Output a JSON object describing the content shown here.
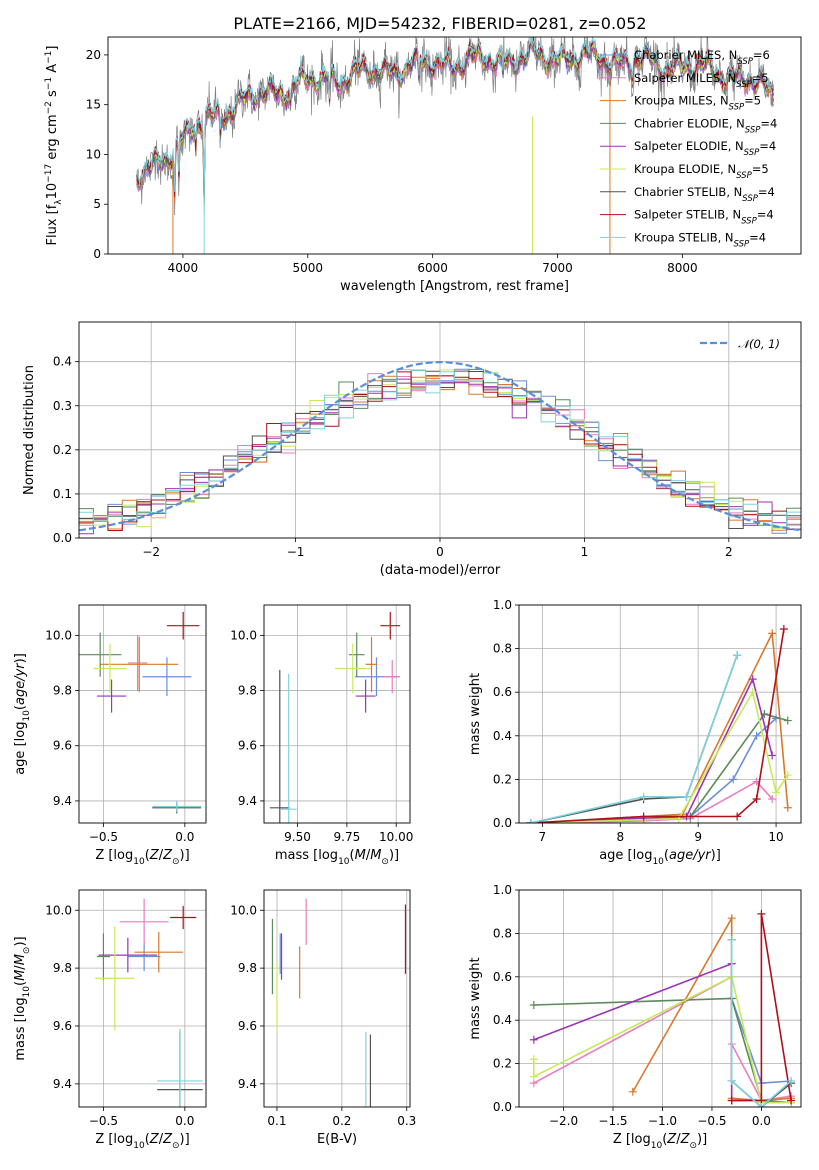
{
  "title": "PLATE=2166, MJD=54232, FIBERID=0281, z=0.052",
  "colors": {
    "chabrier_miles": "#6a8fd8",
    "salpeter_miles": "#e87dbf",
    "kroupa_miles": "#d9782c",
    "chabrier_elodie": "#5b8a5b",
    "salpeter_elodie": "#9a35b5",
    "kroupa_elodie": "#c8ea5a",
    "chabrier_stelib": "#505050",
    "salpeter_stelib": "#b00f1b",
    "kroupa_stelib": "#7fd3e0",
    "normal": "#5b8ed8",
    "spectrum_data": "#808080"
  },
  "legend_models": [
    {
      "label": "Chabrier MILES, N",
      "sub": "SSP",
      "suffix": "=6",
      "color": "#6a8fd8"
    },
    {
      "label": "Salpeter MILES, N",
      "sub": "SSP",
      "suffix": "=5",
      "color": "#e87dbf"
    },
    {
      "label": "Kroupa MILES, N",
      "sub": "SSP",
      "suffix": "=5",
      "color": "#d9782c"
    },
    {
      "label": "Chabrier ELODIE, N",
      "sub": "SSP",
      "suffix": "=4",
      "color": "#5b8a5b"
    },
    {
      "label": "Salpeter ELODIE, N",
      "sub": "SSP",
      "suffix": "=4",
      "color": "#9a35b5"
    },
    {
      "label": "Kroupa ELODIE, N",
      "sub": "SSP",
      "suffix": "=5",
      "color": "#c8ea5a"
    },
    {
      "label": "Chabrier STELIB, N",
      "sub": "SSP",
      "suffix": "=4",
      "color": "#505050"
    },
    {
      "label": "Salpeter STELIB, N",
      "sub": "SSP",
      "suffix": "=4",
      "color": "#b00f1b"
    },
    {
      "label": "Kroupa STELIB, N",
      "sub": "SSP",
      "suffix": "=4",
      "color": "#7fd3e0"
    }
  ],
  "chart_data": [
    {
      "id": "spectrum",
      "type": "line",
      "xlabel": "wavelength [Angstrom, rest frame]",
      "ylabel": "Flux [f_λ 10^-17 erg cm^-2 s^-1 A^-1]",
      "xlim": [
        3400,
        8950
      ],
      "ylim": [
        0,
        21.8
      ],
      "xticks": [
        4000,
        5000,
        6000,
        7000,
        8000
      ],
      "yticks": [
        0,
        5,
        10,
        15,
        20
      ],
      "x_range": [
        3630,
        8730
      ],
      "continuum": {
        "x": [
          3630,
          3800,
          3950,
          4100,
          4300,
          4600,
          4900,
          5200,
          5500,
          5800,
          6100,
          6400,
          6700,
          7000,
          7300,
          7600,
          7900,
          8200,
          8500,
          8730
        ],
        "y": [
          7.5,
          9.0,
          11.0,
          12.5,
          14.3,
          15.8,
          17.0,
          17.7,
          18.2,
          18.8,
          19.2,
          19.4,
          19.6,
          19.8,
          19.6,
          19.4,
          19.0,
          18.5,
          17.6,
          16.0
        ]
      },
      "absorption_lines": [
        {
          "x": 3934,
          "depth": 5.0
        },
        {
          "x": 3968,
          "depth": 4.0
        },
        {
          "x": 4102,
          "depth": 2.0
        },
        {
          "x": 4170,
          "depth": 8.5
        },
        {
          "x": 4300,
          "depth": 2.5
        },
        {
          "x": 4861,
          "depth": 1.8
        },
        {
          "x": 5175,
          "depth": 2.8
        },
        {
          "x": 5890,
          "depth": 2.4
        },
        {
          "x": 6563,
          "depth": 1.5
        },
        {
          "x": 7600,
          "depth": 1.8
        }
      ],
      "series_note": "data spectrum plus 9 SSP model fits"
    },
    {
      "id": "residuals",
      "type": "step",
      "xlabel": "(data-model)/error",
      "ylabel": "Normed distribution",
      "xlim": [
        -2.5,
        2.5
      ],
      "ylim": [
        0,
        0.49
      ],
      "xticks": [
        -2,
        -1,
        0,
        1,
        2
      ],
      "yticks": [
        0.0,
        0.1,
        0.2,
        0.3,
        0.4
      ],
      "bin_width": 0.1,
      "legend": "𝒩(0, 1)"
    },
    {
      "id": "age_vs_Z",
      "type": "errorbar",
      "xlabel": "Z [log10(Z/Z⊙)]",
      "ylabel": "age [log10(age/yr)]",
      "xlim": [
        -0.65,
        0.13
      ],
      "ylim": [
        9.32,
        10.11
      ],
      "xticks": [
        -0.5,
        0.0
      ],
      "yticks": [
        9.4,
        9.6,
        9.8,
        10.0
      ],
      "points": [
        {
          "x": -0.11,
          "y": 9.85,
          "xerr": 0.15,
          "yerr": 0.07,
          "color": "#6a8fd8"
        },
        {
          "x": -0.29,
          "y": 9.9,
          "xerr": 0.06,
          "yerr": 0.1,
          "color": "#e87dbf"
        },
        {
          "x": -0.28,
          "y": 9.895,
          "xerr": 0.24,
          "yerr": 0.1,
          "color": "#d9782c"
        },
        {
          "x": -0.52,
          "y": 9.93,
          "xerr": 0.13,
          "yerr": 0.08,
          "color": "#5b8a5b"
        },
        {
          "x": -0.45,
          "y": 9.78,
          "xerr": 0.09,
          "yerr": 0.06,
          "color": "#9a35b5"
        },
        {
          "x": -0.46,
          "y": 9.88,
          "xerr": 0.1,
          "yerr": 0.09,
          "color": "#c8ea5a"
        },
        {
          "x": -0.05,
          "y": 9.375,
          "xerr": 0.15,
          "yerr": 0.02,
          "color": "#505050"
        },
        {
          "x": -0.01,
          "y": 10.035,
          "xerr": 0.1,
          "yerr": 0.05,
          "color": "#b00f1b"
        },
        {
          "x": -0.05,
          "y": 9.38,
          "xerr": 0.15,
          "yerr": 0.02,
          "color": "#7fd3e0"
        }
      ]
    },
    {
      "id": "age_vs_mass",
      "type": "errorbar",
      "xlabel": "mass [log10(M/M⊙)]",
      "ylabel": "",
      "xlim": [
        9.33,
        10.07
      ],
      "ylim": [
        9.32,
        10.11
      ],
      "xticks": [
        9.5,
        9.75,
        10.0
      ],
      "yticks": [
        9.4,
        9.6,
        9.8,
        10.0
      ],
      "points": [
        {
          "x": 9.9,
          "y": 9.85,
          "xerr": 0.11,
          "yerr": 0.07,
          "color": "#6a8fd8"
        },
        {
          "x": 9.98,
          "y": 9.85,
          "xerr": 0.04,
          "yerr": 0.06,
          "color": "#e87dbf"
        },
        {
          "x": 9.875,
          "y": 9.895,
          "xerr": 0.03,
          "yerr": 0.1,
          "color": "#d9782c"
        },
        {
          "x": 9.8,
          "y": 9.93,
          "xerr": 0.04,
          "yerr": 0.08,
          "color": "#5b8a5b"
        },
        {
          "x": 9.845,
          "y": 9.78,
          "xerr": 0.05,
          "yerr": 0.06,
          "color": "#9a35b5"
        },
        {
          "x": 9.78,
          "y": 9.88,
          "xerr": 0.09,
          "yerr": 0.09,
          "color": "#c8ea5a"
        },
        {
          "x": 9.41,
          "y": 9.375,
          "xerr": 0.05,
          "yerr": 0.5,
          "color": "#505050"
        },
        {
          "x": 9.97,
          "y": 10.035,
          "xerr": 0.05,
          "yerr": 0.05,
          "color": "#b00f1b"
        },
        {
          "x": 9.455,
          "y": 9.37,
          "xerr": 0.04,
          "yerr": 0.49,
          "color": "#7fd3e0"
        }
      ]
    },
    {
      "id": "mass_weight_vs_age",
      "type": "line",
      "xlabel": "age [log10(age/yr)]",
      "ylabel": "mass weight",
      "xlim": [
        6.7,
        10.32
      ],
      "ylim": [
        0,
        1.0
      ],
      "xticks": [
        7,
        8,
        9,
        10
      ],
      "yticks": [
        0.0,
        0.2,
        0.4,
        0.6,
        0.8,
        1.0
      ],
      "series": [
        {
          "color": "#6a8fd8",
          "x": [
            6.85,
            8.3,
            8.9,
            9.45,
            9.75,
            10.0
          ],
          "y": [
            0.0,
            0.01,
            0.03,
            0.2,
            0.4,
            0.48
          ]
        },
        {
          "color": "#e87dbf",
          "x": [
            6.85,
            8.3,
            8.9,
            9.75,
            9.95
          ],
          "y": [
            0.0,
            0.01,
            0.02,
            0.19,
            0.11
          ]
        },
        {
          "color": "#d9782c",
          "x": [
            6.85,
            8.8,
            9.95,
            10.15
          ],
          "y": [
            0.0,
            0.04,
            0.87,
            0.07
          ]
        },
        {
          "color": "#5b8a5b",
          "x": [
            6.85,
            8.9,
            9.85,
            10.15
          ],
          "y": [
            0.0,
            0.03,
            0.5,
            0.47
          ]
        },
        {
          "color": "#9a35b5",
          "x": [
            6.85,
            8.85,
            9.7,
            9.95
          ],
          "y": [
            0.0,
            0.03,
            0.66,
            0.31
          ]
        },
        {
          "color": "#c8ea5a",
          "x": [
            6.85,
            8.75,
            9.7,
            10.0,
            10.15
          ],
          "y": [
            0.0,
            0.02,
            0.6,
            0.14,
            0.22
          ]
        },
        {
          "color": "#505050",
          "x": [
            6.85,
            8.3,
            8.85,
            9.5
          ],
          "y": [
            0.0,
            0.11,
            0.12,
            0.77
          ]
        },
        {
          "color": "#b00f1b",
          "x": [
            6.85,
            8.3,
            9.5,
            9.75,
            10.1
          ],
          "y": [
            0.0,
            0.03,
            0.03,
            0.11,
            0.89
          ]
        },
        {
          "color": "#7fd3e0",
          "x": [
            6.85,
            8.3,
            8.85,
            9.5
          ],
          "y": [
            0.0,
            0.12,
            0.12,
            0.77
          ]
        }
      ]
    },
    {
      "id": "mass_vs_Z",
      "type": "errorbar",
      "xlabel": "Z [log10(Z/Z⊙)]",
      "ylabel": "mass [log10(M/M⊙)]",
      "xlim": [
        -0.65,
        0.13
      ],
      "ylim": [
        9.32,
        10.07
      ],
      "xticks": [
        -0.5,
        0.0
      ],
      "yticks": [
        9.4,
        9.6,
        9.8,
        10.0
      ],
      "points": [
        {
          "x": -0.25,
          "y": 9.84,
          "xerr": 0.1,
          "yerr": 0.05,
          "color": "#6a8fd8"
        },
        {
          "x": -0.25,
          "y": 9.96,
          "xerr": 0.15,
          "yerr": 0.08,
          "color": "#e87dbf"
        },
        {
          "x": -0.16,
          "y": 9.855,
          "xerr": 0.15,
          "yerr": 0.07,
          "color": "#d9782c"
        },
        {
          "x": -0.5,
          "y": 9.84,
          "xerr": 0.04,
          "yerr": 0.08,
          "color": "#5b8a5b"
        },
        {
          "x": -0.35,
          "y": 9.845,
          "xerr": 0.18,
          "yerr": 0.06,
          "color": "#9a35b5"
        },
        {
          "x": -0.43,
          "y": 9.765,
          "xerr": 0.12,
          "yerr": 0.18,
          "color": "#c8ea5a"
        },
        {
          "x": -0.03,
          "y": 9.38,
          "xerr": 0.14,
          "yerr": 0.2,
          "color": "#505050"
        },
        {
          "x": -0.01,
          "y": 9.975,
          "xerr": 0.08,
          "yerr": 0.04,
          "color": "#b00f1b"
        },
        {
          "x": -0.03,
          "y": 9.41,
          "xerr": 0.14,
          "yerr": 0.18,
          "color": "#7fd3e0"
        }
      ]
    },
    {
      "id": "mass_vs_ebv",
      "type": "errorbar",
      "xlabel": "E(B-V)",
      "ylabel": "",
      "xlim": [
        0.08,
        0.305
      ],
      "ylim": [
        9.32,
        10.07
      ],
      "xticks": [
        0.1,
        0.2,
        0.3
      ],
      "yticks": [
        9.4,
        9.6,
        9.8,
        10.0
      ],
      "points": [
        {
          "x": 0.105,
          "y": 9.85,
          "xerr": 0.0,
          "yerr": 0.07,
          "color": "#6a8fd8"
        },
        {
          "x": 0.145,
          "y": 9.96,
          "xerr": 0.0,
          "yerr": 0.08,
          "color": "#e87dbf"
        },
        {
          "x": 0.135,
          "y": 9.785,
          "xerr": 0.0,
          "yerr": 0.09,
          "color": "#d9782c"
        },
        {
          "x": 0.093,
          "y": 9.84,
          "xerr": 0.0,
          "yerr": 0.13,
          "color": "#5b8a5b"
        },
        {
          "x": 0.107,
          "y": 9.84,
          "xerr": 0.0,
          "yerr": 0.08,
          "color": "#9a35b5"
        },
        {
          "x": 0.1,
          "y": 9.7,
          "xerr": 0.0,
          "yerr": 0.12,
          "color": "#c8ea5a"
        },
        {
          "x": 0.244,
          "y": 9.37,
          "xerr": 0.0,
          "yerr": 0.2,
          "color": "#505050"
        },
        {
          "x": 0.298,
          "y": 9.9,
          "xerr": 0.0,
          "yerr": 0.12,
          "color": "#b00f1b"
        },
        {
          "x": 0.237,
          "y": 9.4,
          "xerr": 0.0,
          "yerr": 0.18,
          "color": "#7fd3e0"
        }
      ]
    },
    {
      "id": "mass_weight_vs_Z",
      "type": "line",
      "xlabel": "Z [log10(Z/Z⊙)]",
      "ylabel": "mass weight",
      "xlim": [
        -2.45,
        0.4
      ],
      "ylim": [
        0,
        1.0
      ],
      "xticks": [
        -2.0,
        -1.5,
        -1.0,
        -0.5,
        0.0
      ],
      "yticks": [
        0.0,
        0.2,
        0.4,
        0.6,
        0.8,
        1.0
      ],
      "series": [
        {
          "color": "#6a8fd8",
          "x": [
            -0.3,
            0.0,
            0.3
          ],
          "y": [
            0.5,
            0.11,
            0.12
          ]
        },
        {
          "color": "#e87dbf",
          "x": [
            -2.3,
            -0.3,
            -0.3,
            0.0,
            0.3
          ],
          "y": [
            0.11,
            0.6,
            0.29,
            0.03,
            0.05
          ]
        },
        {
          "color": "#d9782c",
          "x": [
            -1.3,
            -0.3,
            -0.3,
            0.0,
            0.3
          ],
          "y": [
            0.07,
            0.87,
            0.04,
            0.03,
            0.04
          ]
        },
        {
          "color": "#5b8a5b",
          "x": [
            -2.3,
            -0.3,
            0.0,
            0.3
          ],
          "y": [
            0.47,
            0.5,
            0.03,
            0.02
          ]
        },
        {
          "color": "#9a35b5",
          "x": [
            -2.3,
            -0.3,
            -0.3,
            0.0
          ],
          "y": [
            0.31,
            0.66,
            0.03,
            0.03
          ]
        },
        {
          "color": "#c8ea5a",
          "x": [
            -2.3,
            -2.3,
            -0.3,
            0.0,
            0.3
          ],
          "y": [
            0.22,
            0.14,
            0.6,
            0.02,
            0.02
          ]
        },
        {
          "color": "#505050",
          "x": [
            -0.3,
            -0.3,
            0.0,
            0.3
          ],
          "y": [
            0.77,
            0.12,
            0.0,
            0.11
          ]
        },
        {
          "color": "#b00f1b",
          "x": [
            -0.3,
            0.0,
            0.0,
            0.3
          ],
          "y": [
            0.03,
            0.03,
            0.89,
            0.03
          ]
        },
        {
          "color": "#7fd3e0",
          "x": [
            -0.3,
            -0.3,
            0.0,
            0.3
          ],
          "y": [
            0.77,
            0.12,
            0.0,
            0.12
          ]
        }
      ]
    }
  ]
}
